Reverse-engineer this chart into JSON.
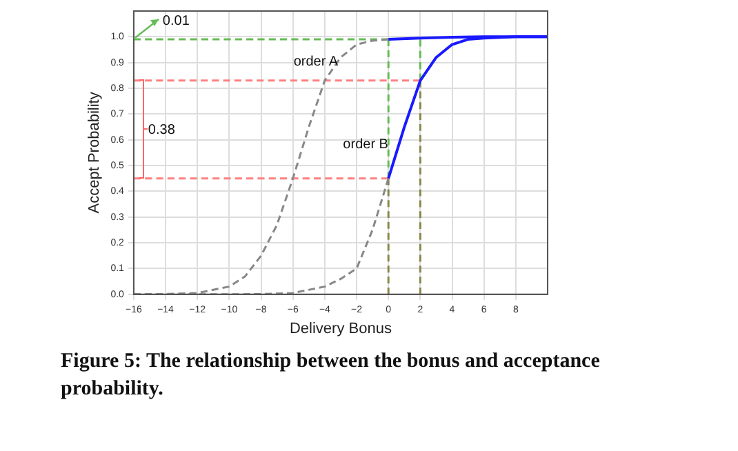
{
  "chart_data": {
    "type": "line",
    "xlabel": "Delivery Bonus",
    "ylabel": "Accept Probability",
    "xlim": [
      -16,
      10
    ],
    "ylim": [
      0,
      1.1
    ],
    "xticks": [
      -16,
      -14,
      -12,
      -10,
      -8,
      -6,
      -4,
      -2,
      0,
      2,
      4,
      6,
      8
    ],
    "yticks": [
      {
        "value": 0,
        "label": "0.0"
      },
      0.1,
      0.2,
      0.3,
      0.4,
      0.5,
      0.6,
      0.7,
      0.8,
      0.9,
      {
        "value": 1,
        "label": "1.0"
      }
    ],
    "grid": true,
    "marker": "none",
    "series": [
      {
        "color": "#888888",
        "line_style": "dashed",
        "x": [
          -16,
          -14,
          -12,
          -10,
          -9,
          -8,
          -7,
          -6,
          -5,
          -4,
          -3,
          -2,
          -1,
          0
        ],
        "values": [
          0,
          0.001,
          0.005,
          0.03,
          0.07,
          0.15,
          0.27,
          0.45,
          0.65,
          0.83,
          0.92,
          0.97,
          0.985,
          0.99
        ]
      },
      {
        "color": "#1a1aff",
        "line_style": "solid",
        "x": [
          0,
          2,
          4,
          6,
          8,
          10
        ],
        "values": [
          0.99,
          0.995,
          0.998,
          1,
          1,
          1
        ]
      },
      {
        "color": "#888888",
        "line_style": "dashed",
        "x": [
          -16,
          -10,
          -8,
          -6,
          -4,
          -3,
          -2,
          -1,
          0
        ],
        "values": [
          0,
          0,
          0.001,
          0.005,
          0.03,
          0.06,
          0.1,
          0.25,
          0.45
        ]
      },
      {
        "color": "#1a1aff",
        "line_style": "solid",
        "x": [
          0,
          1,
          2,
          3,
          4,
          5,
          6,
          8,
          10
        ],
        "values": [
          0.45,
          0.65,
          0.83,
          0.92,
          0.97,
          0.99,
          0.995,
          1,
          1
        ]
      },
      {
        "color": "#ff8080",
        "line_style": "dashed",
        "x": [
          -16,
          2
        ],
        "values": [
          0.83,
          0.83
        ]
      },
      {
        "color": "#ff8080",
        "line_style": "dashed",
        "x": [
          -16,
          0
        ],
        "values": [
          0.45,
          0.45
        ]
      },
      {
        "color": "#66bb55",
        "line_style": "dashed",
        "x": [
          -16,
          0
        ],
        "values": [
          0.99,
          0.99
        ]
      },
      {
        "color": "#66bb55",
        "line_style": "dashed",
        "x": [
          0,
          0
        ],
        "values": [
          0.45,
          0.99
        ]
      },
      {
        "color": "#88884a",
        "line_style": "dashed",
        "x": [
          0,
          0
        ],
        "values": [
          0,
          0.45
        ]
      },
      {
        "color": "#88884a",
        "line_style": "dashed",
        "x": [
          2,
          2
        ],
        "values": [
          0,
          0.83
        ]
      },
      {
        "color": "#66bb55",
        "line_style": "dashed",
        "x": [
          2,
          2
        ],
        "values": [
          0.83,
          0.99
        ]
      }
    ],
    "annotations": [
      "0.01",
      "0.38",
      "order A",
      "order B",
      "Figure 5: The relationship between the bonus and acceptance probability."
    ]
  }
}
